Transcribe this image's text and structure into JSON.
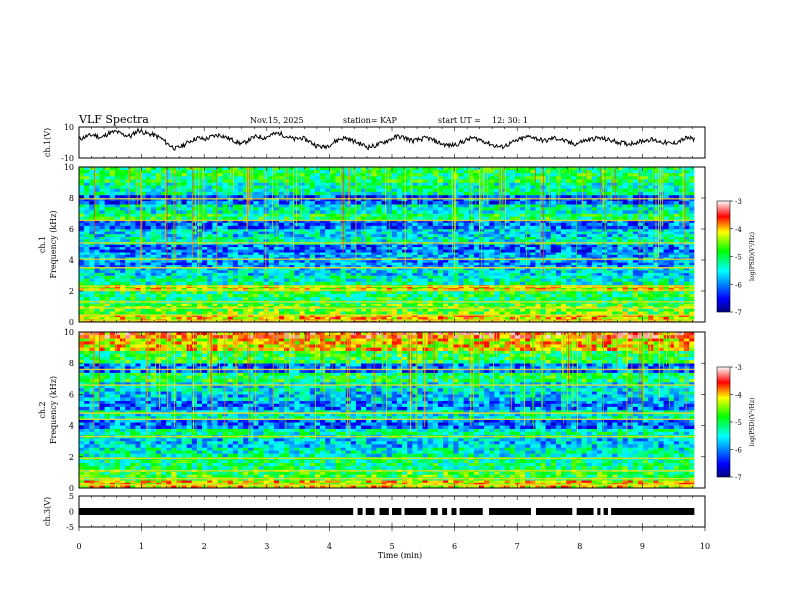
{
  "header": {
    "title": "VLF Spectra",
    "date": "Nov.15, 2025",
    "station": "station= KAP",
    "start_label": "start  UT  =",
    "start_value": "12: 30: 1"
  },
  "chart_data": [
    {
      "type": "line",
      "name": "ch1-waveform",
      "ylabel": "ch.1(V)",
      "ylim": [
        -10,
        10
      ],
      "yticks": [
        "10",
        "-10"
      ],
      "x_range_min": [
        0,
        9.83
      ],
      "trace": [
        2,
        4,
        5,
        3,
        6,
        7,
        5,
        4,
        8,
        6,
        5,
        3,
        -1,
        -4,
        -2,
        1,
        3,
        2,
        4,
        5,
        3,
        1,
        -1,
        2,
        4,
        3,
        5,
        6,
        4,
        2,
        3,
        1,
        -2,
        -3,
        -1,
        2,
        3,
        1,
        -1,
        -3,
        -2,
        0,
        2,
        4,
        3,
        1,
        2,
        3,
        1,
        -1,
        -2,
        -1,
        1,
        3,
        2,
        0,
        -2,
        -3,
        -1,
        1,
        3,
        4,
        2,
        1,
        3,
        2,
        0,
        -1,
        1,
        2,
        3,
        2,
        1,
        0,
        -1,
        0,
        1,
        2,
        1,
        0,
        -1,
        1,
        3,
        2
      ]
    },
    {
      "type": "heatmap",
      "name": "ch1-spectrogram",
      "ylabel": "ch.1",
      "ylabel2": "Frequency  (kHz)",
      "ylim": [
        0,
        10
      ],
      "yticks": [
        "0",
        "2",
        "4",
        "6",
        "8",
        "10"
      ],
      "x_range_min": [
        0,
        9.83
      ],
      "bands": [
        {
          "f0": 0.0,
          "f1": 0.5,
          "v": -4.0
        },
        {
          "f0": 0.5,
          "f1": 1.2,
          "v": -4.6
        },
        {
          "f0": 1.2,
          "f1": 2.0,
          "v": -5.0
        },
        {
          "f0": 2.0,
          "f1": 2.4,
          "v": -4.2
        },
        {
          "f0": 2.4,
          "f1": 3.0,
          "v": -5.3
        },
        {
          "f0": 3.0,
          "f1": 3.5,
          "v": -5.6
        },
        {
          "f0": 3.5,
          "f1": 4.0,
          "v": -5.9
        },
        {
          "f0": 4.0,
          "f1": 4.5,
          "v": -5.8
        },
        {
          "f0": 4.5,
          "f1": 5.0,
          "v": -6.1
        },
        {
          "f0": 5.0,
          "f1": 5.5,
          "v": -5.4
        },
        {
          "f0": 5.5,
          "f1": 6.0,
          "v": -5.6
        },
        {
          "f0": 6.0,
          "f1": 6.6,
          "v": -6.1
        },
        {
          "f0": 6.6,
          "f1": 7.0,
          "v": -5.0
        },
        {
          "f0": 7.0,
          "f1": 7.6,
          "v": -5.4
        },
        {
          "f0": 7.6,
          "f1": 8.2,
          "v": -6.2
        },
        {
          "f0": 8.2,
          "f1": 9.0,
          "v": -5.3
        },
        {
          "f0": 9.0,
          "f1": 10.0,
          "v": -5.0
        }
      ],
      "lines_khz": [
        0.1,
        0.45,
        0.9,
        1.3,
        2.05,
        2.3,
        3.5,
        4.05,
        5.1,
        6.55,
        7.95
      ],
      "colorbar": {
        "label": "log(PSD)(V²/Hz)",
        "ticks": [
          "-3",
          "-4",
          "-5",
          "-6",
          "-7"
        ],
        "range": [
          -7,
          -3
        ]
      }
    },
    {
      "type": "heatmap",
      "name": "ch2-spectrogram",
      "ylabel": "ch.2",
      "ylabel2": "Frequency  (kHz)",
      "ylim": [
        0,
        10
      ],
      "yticks": [
        "0",
        "2",
        "4",
        "6",
        "8",
        "10"
      ],
      "x_range_min": [
        0,
        9.83
      ],
      "bands": [
        {
          "f0": 0.0,
          "f1": 0.5,
          "v": -4.1
        },
        {
          "f0": 0.5,
          "f1": 1.2,
          "v": -4.8
        },
        {
          "f0": 1.2,
          "f1": 2.0,
          "v": -5.1
        },
        {
          "f0": 2.0,
          "f1": 2.6,
          "v": -5.4
        },
        {
          "f0": 2.6,
          "f1": 3.2,
          "v": -5.7
        },
        {
          "f0": 3.2,
          "f1": 3.8,
          "v": -5.3
        },
        {
          "f0": 3.8,
          "f1": 4.4,
          "v": -6.1
        },
        {
          "f0": 4.4,
          "f1": 5.0,
          "v": -5.4
        },
        {
          "f0": 5.0,
          "f1": 5.6,
          "v": -6.0
        },
        {
          "f0": 5.6,
          "f1": 6.2,
          "v": -5.7
        },
        {
          "f0": 6.2,
          "f1": 6.8,
          "v": -5.5
        },
        {
          "f0": 6.8,
          "f1": 7.4,
          "v": -5.0
        },
        {
          "f0": 7.4,
          "f1": 8.0,
          "v": -6.1
        },
        {
          "f0": 8.0,
          "f1": 8.8,
          "v": -4.9
        },
        {
          "f0": 8.8,
          "f1": 9.6,
          "v": -4.1
        },
        {
          "f0": 9.6,
          "f1": 10.0,
          "v": -3.7
        }
      ],
      "lines_khz": [
        0.2,
        0.6,
        1.1,
        1.9,
        3.3,
        4.4,
        4.8,
        6.6,
        7.6
      ],
      "colorbar": {
        "label": "log(PSD)(V²/Hz)",
        "ticks": [
          "-3",
          "-4",
          "-5",
          "-6",
          "-7"
        ],
        "range": [
          -7,
          -3
        ]
      }
    },
    {
      "type": "line",
      "name": "ch3-digital",
      "ylabel": "ch.3(V)",
      "ylim": [
        -5,
        5
      ],
      "yticks": [
        "5",
        "0",
        "-5"
      ],
      "x_range_min": [
        0,
        9.83
      ],
      "level_v": 0,
      "gaps_min": [
        [
          4.38,
          4.45
        ],
        [
          4.53,
          4.58
        ],
        [
          4.72,
          4.8
        ],
        [
          4.95,
          5.0
        ],
        [
          5.15,
          5.2
        ],
        [
          5.55,
          5.62
        ],
        [
          5.73,
          5.8
        ],
        [
          5.88,
          5.95
        ],
        [
          6.03,
          6.08
        ],
        [
          6.45,
          6.55
        ],
        [
          7.22,
          7.3
        ],
        [
          7.88,
          7.95
        ],
        [
          8.22,
          8.28
        ],
        [
          8.33,
          8.38
        ],
        [
          8.45,
          8.5
        ]
      ]
    }
  ],
  "x_axis": {
    "label": "Time  (min)",
    "range": [
      0,
      10
    ],
    "ticks": [
      "0",
      "1",
      "2",
      "3",
      "4",
      "5",
      "6",
      "7",
      "8",
      "9",
      "10"
    ]
  }
}
